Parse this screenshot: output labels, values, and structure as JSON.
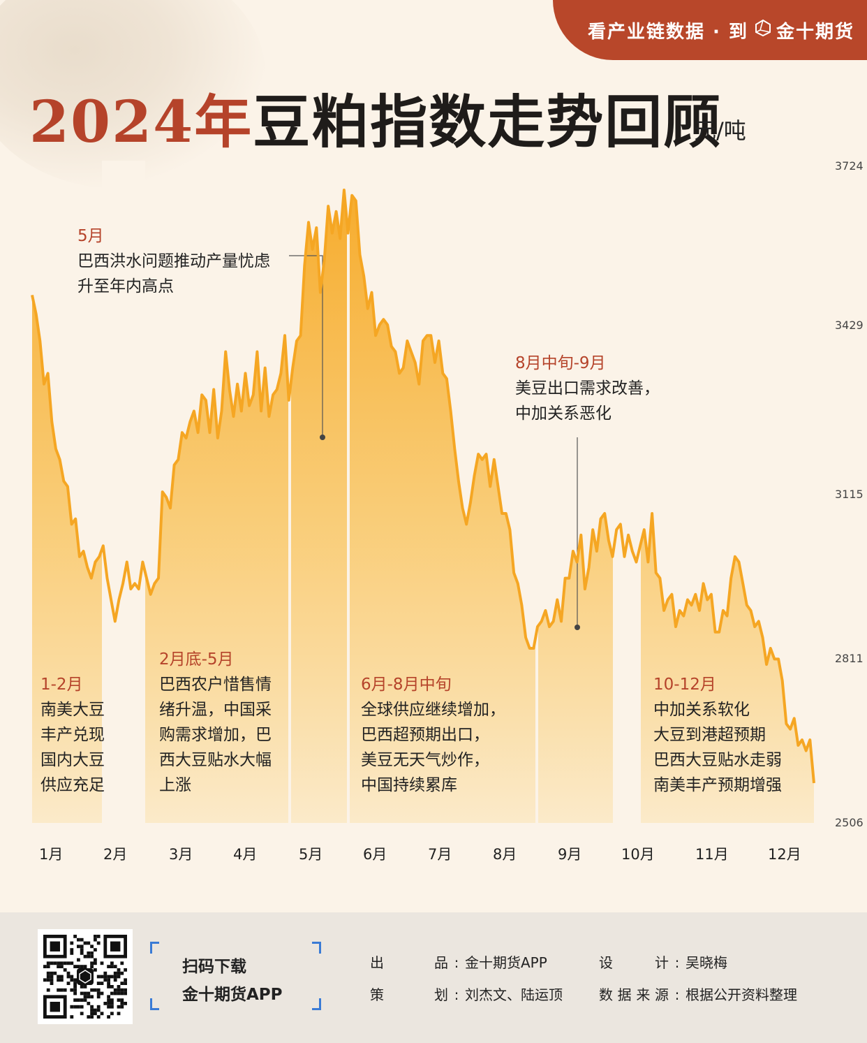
{
  "banner": {
    "text": "看产业链数据 · 到",
    "brand": "金十期货"
  },
  "title": {
    "year": "2024年",
    "rest": "豆粕指数走势回顾"
  },
  "unit": "元/吨",
  "colors": {
    "accent": "#b5432a",
    "line": "#f5a623",
    "fill_top": "#f6a823",
    "fill_bottom": "#fbe9c6"
  },
  "chart_data": {
    "type": "area",
    "title": "2024年豆粕指数走势回顾",
    "ylabel": "元/吨",
    "ylim": [
      2506,
      3724
    ],
    "yticks": [
      2506,
      2811,
      3115,
      3429,
      3724
    ],
    "xticks": [
      "1月",
      "2月",
      "3月",
      "4月",
      "5月",
      "6月",
      "7月",
      "8月",
      "9月",
      "10月",
      "11月",
      "12月"
    ],
    "series": [
      {
        "values": [
          3485,
          3450,
          3400,
          3320,
          3340,
          3250,
          3200,
          3180,
          3140,
          3130,
          3060,
          3070,
          3000,
          3010,
          2980,
          2960,
          2990,
          3000,
          3020,
          2960,
          2920,
          2880,
          2920,
          2950,
          2990,
          2940,
          2950,
          2940,
          2990,
          2960,
          2930,
          2950,
          2960,
          3120,
          3110,
          3090,
          3170,
          3180,
          3230,
          3220,
          3250,
          3270,
          3230,
          3300,
          3290,
          3230,
          3310,
          3220,
          3270,
          3380,
          3310,
          3260,
          3320,
          3270,
          3340,
          3280,
          3300,
          3380,
          3270,
          3350,
          3260,
          3300,
          3310,
          3340,
          3410,
          3290,
          3350,
          3400,
          3410,
          3540,
          3620,
          3570,
          3610,
          3490,
          3550,
          3650,
          3600,
          3640,
          3590,
          3680,
          3600,
          3670,
          3660,
          3560,
          3520,
          3460,
          3490,
          3410,
          3430,
          3440,
          3430,
          3390,
          3380,
          3340,
          3350,
          3400,
          3380,
          3360,
          3320,
          3400,
          3410,
          3410,
          3360,
          3400,
          3340,
          3330,
          3270,
          3200,
          3140,
          3090,
          3060,
          3100,
          3150,
          3190,
          3180,
          3190,
          3130,
          3180,
          3130,
          3080,
          3080,
          3050,
          2970,
          2950,
          2910,
          2850,
          2830,
          2830,
          2870,
          2880,
          2900,
          2870,
          2880,
          2920,
          2880,
          2960,
          2960,
          3010,
          2990,
          3040,
          2940,
          2980,
          3050,
          3010,
          3070,
          3080,
          3030,
          3000,
          3050,
          3060,
          3000,
          3040,
          3010,
          2990,
          3020,
          3050,
          2990,
          3080,
          2970,
          2960,
          2900,
          2920,
          2930,
          2870,
          2900,
          2890,
          2920,
          2910,
          2930,
          2900,
          2950,
          2920,
          2930,
          2860,
          2860,
          2900,
          2890,
          2960,
          3000,
          2990,
          2950,
          2910,
          2900,
          2870,
          2880,
          2850,
          2800,
          2830,
          2810,
          2810,
          2770,
          2690,
          2680,
          2700,
          2650,
          2660,
          2640,
          2660,
          2580
        ]
      }
    ],
    "annotations": [
      {
        "head": "5月",
        "lines": [
          "巴西洪水问题推动产量忧虑",
          "升至年内高点"
        ]
      },
      {
        "head": "8月中旬-9月",
        "lines": [
          "美豆出口需求改善，",
          "中加关系恶化"
        ]
      },
      {
        "head": "1-2月",
        "lines": [
          "南美大豆",
          "丰产兑现",
          "国内大豆",
          "供应充足"
        ]
      },
      {
        "head": "2月底-5月",
        "lines": [
          "巴西农户惜售情",
          "绪升温，中国采",
          "购需求增加，巴",
          "西大豆贴水大幅",
          "上涨"
        ]
      },
      {
        "head": "6月-8月中旬",
        "lines": [
          "全球供应继续增加，",
          "巴西超预期出口，",
          "美豆无天气炒作，",
          "中国持续累库"
        ]
      },
      {
        "head": "10-12月",
        "lines": [
          "中加关系软化",
          "大豆到港超预期",
          "巴西大豆贴水走弱",
          "南美丰产预期增强"
        ]
      }
    ]
  },
  "footer": {
    "scan_lines": [
      "扫码下载",
      "金十期货APP"
    ],
    "credits": [
      {
        "label": "出品",
        "value": "金十期货APP"
      },
      {
        "label": "设计",
        "value": "吴晓梅"
      },
      {
        "label": "策划",
        "value": "刘杰文、陆运顶"
      },
      {
        "label": "数据来源",
        "value": "根据公开资料整理"
      }
    ]
  }
}
